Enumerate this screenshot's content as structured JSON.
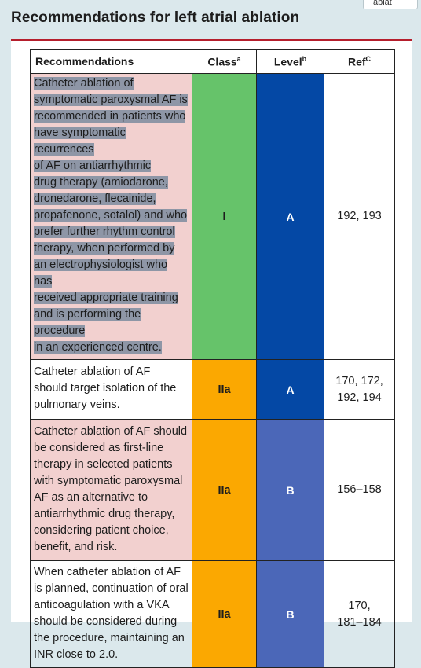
{
  "search_chip": {
    "text": "ablat"
  },
  "page": {
    "title": "Recommendations for left atrial ablation"
  },
  "table": {
    "headers": {
      "recommendations": "Recommendations",
      "class": "Class",
      "class_sup": "a",
      "level": "Level",
      "level_sup": "b",
      "ref": "Ref",
      "ref_sup": "C"
    },
    "rows": [
      {
        "lines": [
          "Catheter ablation of",
          "symptomatic paroxysmal AF is",
          "recommended in patients who",
          "have symptomatic recurrences",
          "of AF on antiarrhythmic",
          "drug therapy (amiodarone,",
          "dronedarone, flecainide,",
          "propafenone, sotalol) and who",
          "prefer further rhythm control",
          "therapy, when performed by",
          "an electrophysiologist who has",
          "received appropriate training",
          "and is performing the procedure",
          "in an experienced centre."
        ],
        "class": "I",
        "level": "A",
        "ref_lines": [
          "192, 193"
        ]
      },
      {
        "lines": [
          "Catheter ablation of AF",
          "should target isolation of the",
          "pulmonary veins."
        ],
        "class": "IIa",
        "level": "A",
        "ref_lines": [
          "170, 172,",
          "192, 194"
        ]
      },
      {
        "lines": [
          "Catheter ablation of AF should",
          "be considered as first-line",
          "therapy in selected patients",
          "with symptomatic paroxysmal",
          "AF as an alternative to",
          "antiarrhythmic drug therapy,",
          "considering patient choice,",
          "benefit, and risk."
        ],
        "class": "IIa",
        "level": "B",
        "ref_lines": [
          "156–158"
        ]
      },
      {
        "lines": [
          "When catheter ablation of AF",
          "is planned, continuation of oral",
          "anticoagulation with a VKA",
          "should be considered during",
          "the procedure, maintaining an",
          "INR close to 2.0."
        ],
        "class": "IIa",
        "level": "B",
        "ref_lines": [
          "170,",
          "181–184"
        ]
      }
    ]
  }
}
